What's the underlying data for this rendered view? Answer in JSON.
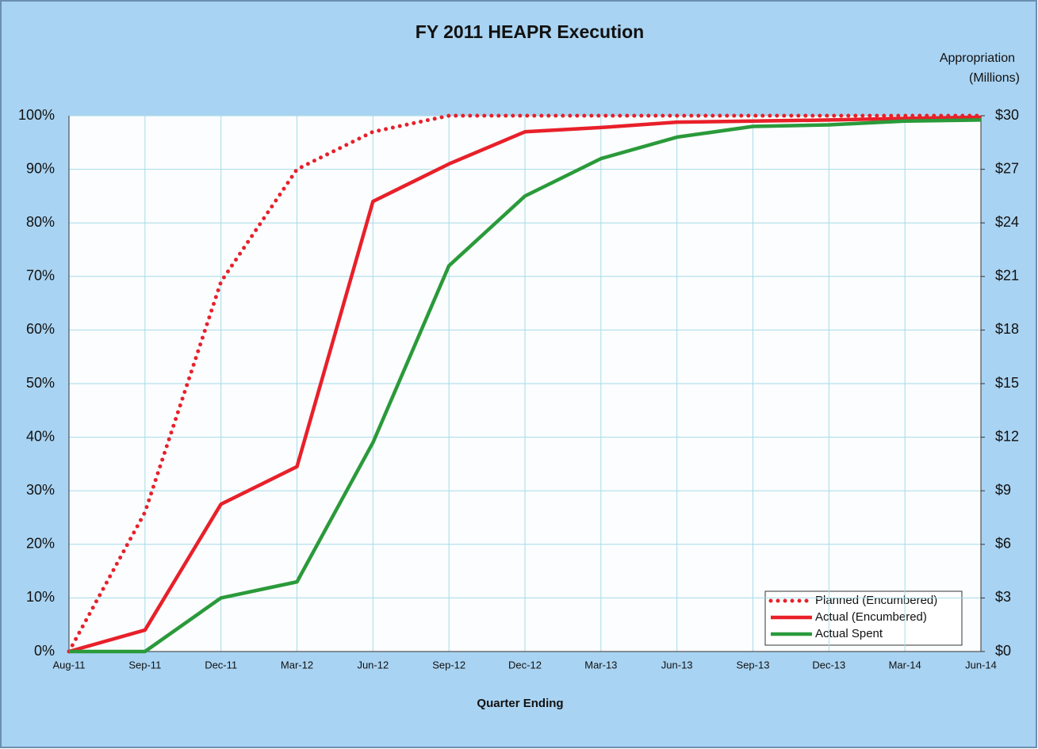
{
  "chart_data": {
    "type": "line",
    "title": "FY 2011 HEAPR Execution",
    "x_label": "Quarter Ending",
    "y2_label": [
      "Appropriation",
      "(Millions)"
    ],
    "categories": [
      "Aug-11",
      "Sep-11",
      "Dec-11",
      "Mar-12",
      "Jun-12",
      "Sep-12",
      "Dec-12",
      "Mar-13",
      "Jun-13",
      "Sep-13",
      "Dec-13",
      "Mar-14",
      "Jun-14"
    ],
    "series": [
      {
        "name": "Planned (Encumbered)",
        "color": "#e8202a",
        "style": "dotted",
        "values": [
          0,
          26,
          69,
          90,
          97,
          100,
          100,
          100,
          100,
          100,
          100,
          100,
          100
        ]
      },
      {
        "name": "Actual (Encumbered)",
        "color": "#e8202a",
        "style": "solid",
        "values": [
          0,
          4,
          27.5,
          34.5,
          84,
          91,
          97,
          97.8,
          98.8,
          99,
          99.2,
          99.5,
          99.7
        ]
      },
      {
        "name": "Actual Spent",
        "color": "#2a9a3a",
        "style": "solid",
        "values": [
          0,
          0,
          10,
          13,
          39,
          72,
          85,
          92,
          96,
          98,
          98.3,
          99,
          99.2
        ]
      }
    ],
    "ylim": [
      0,
      100
    ],
    "yticks": [
      {
        "value": 0,
        "label": "0%"
      },
      {
        "value": 10,
        "label": "10%"
      },
      {
        "value": 20,
        "label": "20%"
      },
      {
        "value": 30,
        "label": "30%"
      },
      {
        "value": 40,
        "label": "40%"
      },
      {
        "value": 50,
        "label": "50%"
      },
      {
        "value": 60,
        "label": "60%"
      },
      {
        "value": 70,
        "label": "70%"
      },
      {
        "value": 80,
        "label": "80%"
      },
      {
        "value": 90,
        "label": "90%"
      },
      {
        "value": 100,
        "label": "100%"
      }
    ],
    "y2lim": [
      0,
      30
    ],
    "y2ticks": [
      {
        "value": 0,
        "label": "$0"
      },
      {
        "value": 3,
        "label": "$3"
      },
      {
        "value": 6,
        "label": "$6"
      },
      {
        "value": 9,
        "label": "$9"
      },
      {
        "value": 12,
        "label": "$12"
      },
      {
        "value": 15,
        "label": "$15"
      },
      {
        "value": 18,
        "label": "$18"
      },
      {
        "value": 21,
        "label": "$21"
      },
      {
        "value": 24,
        "label": "$24"
      },
      {
        "value": 27,
        "label": "$27"
      },
      {
        "value": 30,
        "label": "$30"
      }
    ],
    "grid": true,
    "legend": "bottom-right"
  }
}
